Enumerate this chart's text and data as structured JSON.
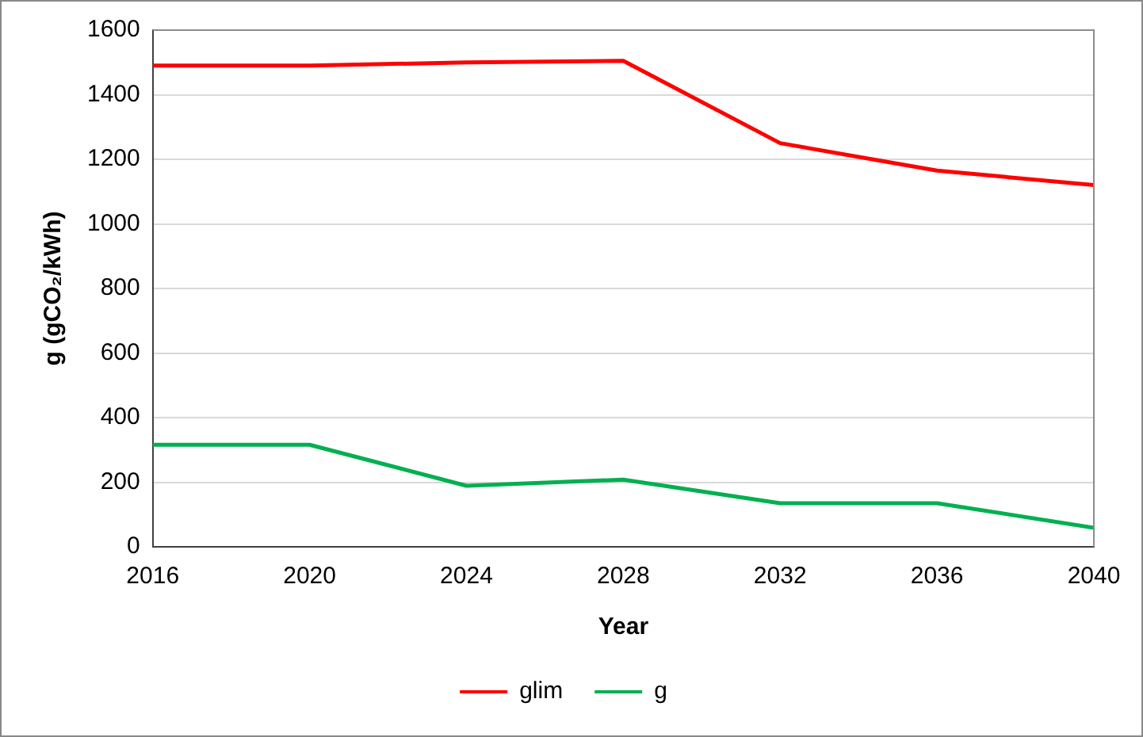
{
  "chart_data": {
    "type": "line",
    "xlabel": "Year",
    "ylabel": "g (gCO₂/kWh)",
    "x": [
      2016,
      2020,
      2024,
      2028,
      2032,
      2036,
      2040
    ],
    "series": [
      {
        "name": "glim",
        "color": "#ff0000",
        "values": [
          1490,
          1490,
          1500,
          1505,
          1250,
          1165,
          1120
        ]
      },
      {
        "name": "g",
        "color": "#00b050",
        "values": [
          316,
          316,
          189,
          208,
          135,
          135,
          59
        ]
      }
    ],
    "xlim": [
      2016,
      2040
    ],
    "xticks": [
      2016,
      2020,
      2024,
      2028,
      2032,
      2036,
      2040
    ],
    "ylim": [
      0,
      1600
    ],
    "yticks": [
      0,
      200,
      400,
      600,
      800,
      1000,
      1200,
      1400,
      1600
    ],
    "grid": "y",
    "legend": "bottom",
    "marker": "none",
    "line_style": "solid"
  }
}
